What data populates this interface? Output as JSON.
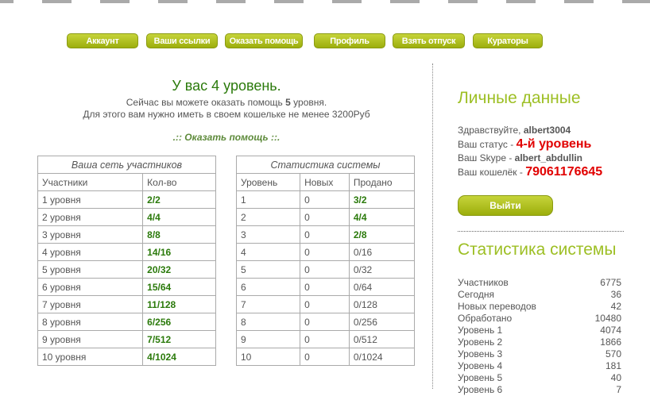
{
  "nav": [
    "Аккаунт",
    "Ваши ссылки",
    "Оказать помощь",
    "Профиль",
    "Взять отпуск",
    "Кураторы"
  ],
  "level_title": "У вас 4 уровень.",
  "line1_pre": "Сейчас вы можете оказать помощь ",
  "line1_num": "5",
  "line1_post": " уровня.",
  "line2": "Для этого вам нужно иметь в своем кошельке не менее 3200Руб",
  "help_link": ".:: Оказать помощь ::.",
  "network": {
    "caption": "Ваша сеть участников",
    "headers": [
      "Участники",
      "Кол-во"
    ],
    "rows": [
      [
        "1 уровня",
        "2/2"
      ],
      [
        "2 уровня",
        "4/4"
      ],
      [
        "3 уровня",
        "8/8"
      ],
      [
        "4 уровня",
        "14/16"
      ],
      [
        "5 уровня",
        "20/32"
      ],
      [
        "6 уровня",
        "15/64"
      ],
      [
        "7 уровня",
        "11/128"
      ],
      [
        "8 уровня",
        "6/256"
      ],
      [
        "9 уровня",
        "7/512"
      ],
      [
        "10 уровня",
        "4/1024"
      ]
    ]
  },
  "system": {
    "caption": "Статистика системы",
    "headers": [
      "Уровень",
      "Новых",
      "Продано"
    ],
    "rows": [
      [
        "1",
        "0",
        "3/2",
        true
      ],
      [
        "2",
        "0",
        "4/4",
        true
      ],
      [
        "3",
        "0",
        "2/8",
        true
      ],
      [
        "4",
        "0",
        "0/16",
        false
      ],
      [
        "5",
        "0",
        "0/32",
        false
      ],
      [
        "6",
        "0",
        "0/64",
        false
      ],
      [
        "7",
        "0",
        "0/128",
        false
      ],
      [
        "8",
        "0",
        "0/256",
        false
      ],
      [
        "9",
        "0",
        "0/512",
        false
      ],
      [
        "10",
        "0",
        "0/1024",
        false
      ]
    ]
  },
  "personal": {
    "title": "Личные данные",
    "hello": "Здравствуйте, ",
    "user": "albert3004",
    "status_label": "Ваш статус - ",
    "status": "4-й уровень",
    "skype_label": "Ваш Skype - ",
    "skype": "albert_abdullin",
    "wallet_label": "Ваш кошелёк - ",
    "wallet": "79061176645",
    "logout": "Выйти"
  },
  "stats": {
    "title": "Статистика системы",
    "items": [
      [
        "Участников",
        "6775"
      ],
      [
        "Сегодня",
        "36"
      ],
      [
        "Новых переводов",
        "42"
      ],
      [
        "Обработано",
        "10480"
      ],
      [
        "Уровень 1",
        "4074"
      ],
      [
        "Уровень 2",
        "1866"
      ],
      [
        "Уровень 3",
        "570"
      ],
      [
        "Уровень 4",
        "181"
      ],
      [
        "Уровень 5",
        "40"
      ],
      [
        "Уровень 6",
        "7"
      ]
    ]
  }
}
